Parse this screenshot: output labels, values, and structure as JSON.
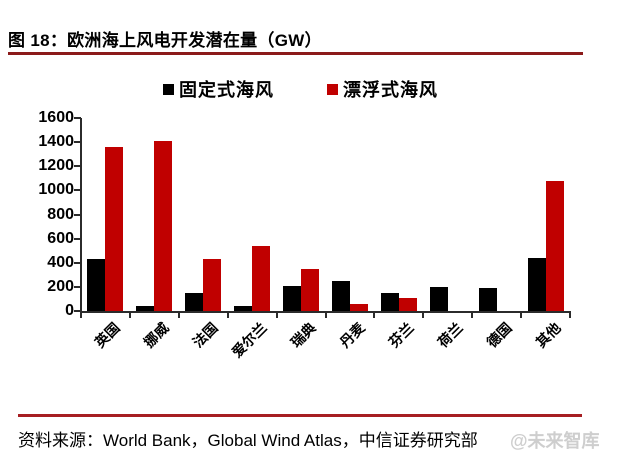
{
  "figure": {
    "title": "图 18：欧洲海上风电开发潜在量（GW）",
    "source": "资料来源：World Bank，Global Wind Atlas，中信证券研究部",
    "watermark": "@未来智库"
  },
  "colors": {
    "fixed": "#000000",
    "floating": "#C00000",
    "title_rule": "#8B1A1A",
    "source_rule": "#A61E22",
    "axis": "#2b2b2b",
    "watermark": "#C6C6C6"
  },
  "chart_data": {
    "type": "bar",
    "title": "欧洲海上风电开发潜在量（GW）",
    "categories": [
      "英国",
      "挪威",
      "法国",
      "爱尔兰",
      "瑞典",
      "丹麦",
      "芬兰",
      "荷兰",
      "德国",
      "其他"
    ],
    "series": [
      {
        "name": "固定式海风",
        "color": "#000000",
        "values": [
          430,
          40,
          150,
          40,
          210,
          250,
          150,
          200,
          190,
          440
        ]
      },
      {
        "name": "漂浮式海风",
        "color": "#C00000",
        "values": [
          1360,
          1410,
          430,
          540,
          350,
          60,
          110,
          0,
          0,
          1080
        ]
      }
    ],
    "xlabel": "",
    "ylabel": "",
    "ylim": [
      0,
      1600
    ],
    "ytick_step": 200,
    "grid": false,
    "legend_position": "top"
  }
}
